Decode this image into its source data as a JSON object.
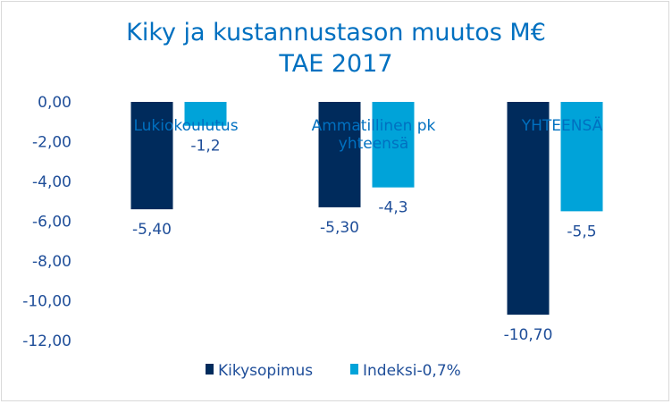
{
  "chart_data": {
    "type": "bar",
    "title": [
      "Kiky ja kustannustason  muutos M€",
      "TAE 2017"
    ],
    "categories": [
      [
        "Lukiokoulutus"
      ],
      [
        "Ammatillinen pk",
        "yhteensä"
      ],
      [
        "YHTEENSÄ"
      ]
    ],
    "series": [
      {
        "name": "Kikysopimus",
        "color": "#002b5c",
        "values": [
          -5.4,
          -5.3,
          -10.7
        ],
        "labels": [
          "-5,40",
          "-5,30",
          "-10,70"
        ]
      },
      {
        "name": "Indeksi-0,7%",
        "color": "#00a3d9",
        "values": [
          -1.2,
          -4.3,
          -5.5
        ],
        "labels": [
          "-1,2",
          "-4,3",
          "-5,5"
        ]
      }
    ],
    "ylim": [
      -12,
      0
    ],
    "yticks": [
      0,
      -2,
      -4,
      -6,
      -8,
      -10,
      -12
    ],
    "ytick_labels": [
      "0,00",
      "-2,00",
      "-4,00",
      "-6,00",
      "-8,00",
      "-10,00",
      "-12,00"
    ],
    "grid": false,
    "legend_position": "bottom"
  }
}
